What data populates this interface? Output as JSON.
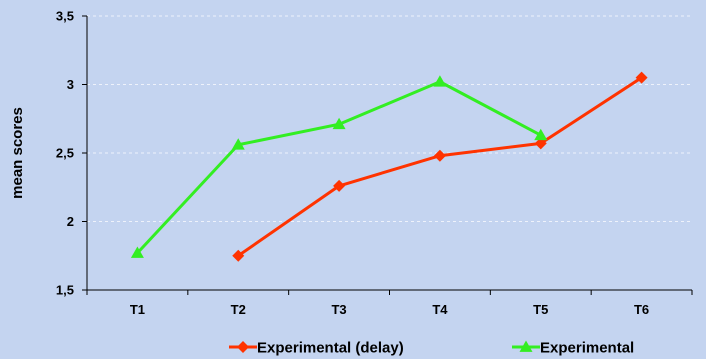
{
  "chart_data": {
    "type": "line",
    "categories": [
      "T1",
      "T2",
      "T3",
      "T4",
      "T5",
      "T6"
    ],
    "series": [
      {
        "name": "Experimental (delay)",
        "color": "#ff3300",
        "marker": "diamond",
        "values": [
          null,
          1.75,
          2.26,
          2.48,
          2.57,
          3.05
        ]
      },
      {
        "name": "Experimental",
        "color": "#33ee22",
        "marker": "triangle",
        "values": [
          1.77,
          2.56,
          2.71,
          3.02,
          2.63,
          null
        ]
      }
    ],
    "title": "",
    "xlabel": "",
    "ylabel": "mean scores",
    "ylim": [
      1.5,
      3.5
    ],
    "yticks": [
      1.5,
      2,
      2.5,
      3,
      3.5
    ],
    "ytick_labels": [
      "1,5",
      "2",
      "2,5",
      "3",
      "3,5"
    ],
    "grid": "horizontal-dashed",
    "legend": "bottom",
    "plot_background": "#c4d4f0"
  }
}
